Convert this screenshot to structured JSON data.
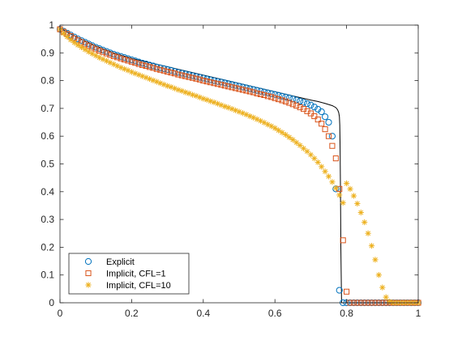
{
  "chart_data": {
    "type": "scatter",
    "title": "",
    "xlabel": "",
    "ylabel": "",
    "xlim": [
      0,
      1
    ],
    "ylim": [
      0,
      1
    ],
    "grid": false,
    "legend_position": "bottom-left",
    "x_ticks": [
      "0",
      "0.2",
      "0.4",
      "0.6",
      "0.8",
      "1"
    ],
    "y_ticks": [
      "0",
      "0.1",
      "0.2",
      "0.3",
      "0.4",
      "0.5",
      "0.6",
      "0.7",
      "0.8",
      "0.9",
      "1"
    ],
    "reference_line": {
      "color": "#000000",
      "x": [
        0.0,
        0.02,
        0.05,
        0.1,
        0.15,
        0.2,
        0.25,
        0.3,
        0.35,
        0.4,
        0.45,
        0.5,
        0.55,
        0.6,
        0.65,
        0.7,
        0.72,
        0.74,
        0.76,
        0.77,
        0.775,
        0.778,
        0.78,
        0.781,
        0.782,
        0.783,
        0.784,
        0.786,
        0.8,
        0.9,
        1.0
      ],
      "y": [
        0.99,
        0.975,
        0.955,
        0.925,
        0.9,
        0.88,
        0.865,
        0.85,
        0.835,
        0.82,
        0.805,
        0.79,
        0.775,
        0.76,
        0.745,
        0.73,
        0.725,
        0.718,
        0.71,
        0.703,
        0.695,
        0.685,
        0.67,
        0.64,
        0.55,
        0.4,
        0.2,
        0.0,
        0.0,
        0.0,
        0.0
      ]
    },
    "series": [
      {
        "name": "Explicit",
        "marker": "circle",
        "color": "#0072BD",
        "x": [
          0.0,
          0.01,
          0.02,
          0.03,
          0.04,
          0.05,
          0.06,
          0.07,
          0.08,
          0.09,
          0.1,
          0.11,
          0.12,
          0.13,
          0.14,
          0.15,
          0.16,
          0.17,
          0.18,
          0.19,
          0.2,
          0.21,
          0.22,
          0.23,
          0.24,
          0.25,
          0.26,
          0.27,
          0.28,
          0.29,
          0.3,
          0.31,
          0.32,
          0.33,
          0.34,
          0.35,
          0.36,
          0.37,
          0.38,
          0.39,
          0.4,
          0.41,
          0.42,
          0.43,
          0.44,
          0.45,
          0.46,
          0.47,
          0.48,
          0.49,
          0.5,
          0.51,
          0.52,
          0.53,
          0.54,
          0.55,
          0.56,
          0.57,
          0.58,
          0.59,
          0.6,
          0.61,
          0.62,
          0.63,
          0.64,
          0.65,
          0.66,
          0.67,
          0.68,
          0.69,
          0.7,
          0.71,
          0.72,
          0.73,
          0.74,
          0.75,
          0.76,
          0.77,
          0.78,
          0.79,
          0.8,
          0.81,
          0.82,
          0.83,
          0.84,
          0.85,
          0.86,
          0.87,
          0.88,
          0.89,
          0.9,
          0.91,
          0.92,
          0.93,
          0.94,
          0.95,
          0.96,
          0.97,
          0.98,
          0.99,
          1.0
        ],
        "y": [
          0.985,
          0.978,
          0.971,
          0.964,
          0.957,
          0.95,
          0.944,
          0.938,
          0.932,
          0.926,
          0.92,
          0.915,
          0.91,
          0.905,
          0.9,
          0.895,
          0.891,
          0.887,
          0.883,
          0.879,
          0.875,
          0.871,
          0.867,
          0.863,
          0.86,
          0.856,
          0.853,
          0.849,
          0.846,
          0.843,
          0.84,
          0.837,
          0.833,
          0.83,
          0.827,
          0.824,
          0.821,
          0.818,
          0.815,
          0.812,
          0.809,
          0.806,
          0.803,
          0.8,
          0.797,
          0.795,
          0.792,
          0.789,
          0.786,
          0.783,
          0.78,
          0.777,
          0.774,
          0.771,
          0.768,
          0.765,
          0.762,
          0.759,
          0.756,
          0.753,
          0.75,
          0.747,
          0.744,
          0.741,
          0.738,
          0.734,
          0.73,
          0.726,
          0.722,
          0.717,
          0.712,
          0.705,
          0.697,
          0.688,
          0.67,
          0.65,
          0.6,
          0.41,
          0.045,
          0.0,
          0.0,
          0.0,
          0.0,
          0.0,
          0.0,
          0.0,
          0.0,
          0.0,
          0.0,
          0.0,
          0.0,
          0.0,
          0.0,
          0.0,
          0.0,
          0.0,
          0.0,
          0.0,
          0.0,
          0.0,
          0.0
        ]
      },
      {
        "name": "Implicit, CFL=1",
        "marker": "square",
        "color": "#D95319",
        "x": [
          0.0,
          0.01,
          0.02,
          0.03,
          0.04,
          0.05,
          0.06,
          0.07,
          0.08,
          0.09,
          0.1,
          0.11,
          0.12,
          0.13,
          0.14,
          0.15,
          0.16,
          0.17,
          0.18,
          0.19,
          0.2,
          0.21,
          0.22,
          0.23,
          0.24,
          0.25,
          0.26,
          0.27,
          0.28,
          0.29,
          0.3,
          0.31,
          0.32,
          0.33,
          0.34,
          0.35,
          0.36,
          0.37,
          0.38,
          0.39,
          0.4,
          0.41,
          0.42,
          0.43,
          0.44,
          0.45,
          0.46,
          0.47,
          0.48,
          0.49,
          0.5,
          0.51,
          0.52,
          0.53,
          0.54,
          0.55,
          0.56,
          0.57,
          0.58,
          0.59,
          0.6,
          0.61,
          0.62,
          0.63,
          0.64,
          0.65,
          0.66,
          0.67,
          0.68,
          0.69,
          0.7,
          0.71,
          0.72,
          0.73,
          0.74,
          0.75,
          0.76,
          0.77,
          0.78,
          0.79,
          0.8,
          0.81,
          0.82,
          0.83,
          0.84,
          0.85,
          0.86,
          0.87,
          0.88,
          0.89,
          0.9,
          0.91,
          0.92,
          0.93,
          0.94,
          0.95,
          0.96,
          0.97,
          0.98,
          0.99,
          1.0
        ],
        "y": [
          0.985,
          0.976,
          0.968,
          0.96,
          0.952,
          0.945,
          0.938,
          0.931,
          0.925,
          0.919,
          0.913,
          0.908,
          0.903,
          0.898,
          0.893,
          0.888,
          0.884,
          0.88,
          0.876,
          0.872,
          0.868,
          0.864,
          0.86,
          0.856,
          0.853,
          0.849,
          0.846,
          0.842,
          0.839,
          0.836,
          0.832,
          0.829,
          0.826,
          0.822,
          0.819,
          0.816,
          0.813,
          0.81,
          0.807,
          0.804,
          0.8,
          0.797,
          0.794,
          0.791,
          0.788,
          0.785,
          0.782,
          0.779,
          0.776,
          0.773,
          0.77,
          0.767,
          0.764,
          0.761,
          0.758,
          0.754,
          0.751,
          0.748,
          0.744,
          0.741,
          0.737,
          0.733,
          0.729,
          0.725,
          0.72,
          0.715,
          0.71,
          0.704,
          0.698,
          0.69,
          0.682,
          0.672,
          0.66,
          0.645,
          0.625,
          0.6,
          0.565,
          0.52,
          0.41,
          0.225,
          0.04,
          0.0,
          0.0,
          0.0,
          0.0,
          0.0,
          0.0,
          0.0,
          0.0,
          0.0,
          0.0,
          0.0,
          0.0,
          0.0,
          0.0,
          0.0,
          0.0,
          0.0,
          0.0,
          0.0,
          0.0
        ]
      },
      {
        "name": "Implicit, CFL=10",
        "marker": "asterisk",
        "color": "#EDB120",
        "x": [
          0.0,
          0.01,
          0.02,
          0.03,
          0.04,
          0.05,
          0.06,
          0.07,
          0.08,
          0.09,
          0.1,
          0.11,
          0.12,
          0.13,
          0.14,
          0.15,
          0.16,
          0.17,
          0.18,
          0.19,
          0.2,
          0.21,
          0.22,
          0.23,
          0.24,
          0.25,
          0.26,
          0.27,
          0.28,
          0.29,
          0.3,
          0.31,
          0.32,
          0.33,
          0.34,
          0.35,
          0.36,
          0.37,
          0.38,
          0.39,
          0.4,
          0.41,
          0.42,
          0.43,
          0.44,
          0.45,
          0.46,
          0.47,
          0.48,
          0.49,
          0.5,
          0.51,
          0.52,
          0.53,
          0.54,
          0.55,
          0.56,
          0.57,
          0.58,
          0.59,
          0.6,
          0.61,
          0.62,
          0.63,
          0.64,
          0.65,
          0.66,
          0.67,
          0.68,
          0.69,
          0.7,
          0.71,
          0.72,
          0.73,
          0.74,
          0.75,
          0.76,
          0.77,
          0.78,
          0.79,
          0.8,
          0.81,
          0.82,
          0.83,
          0.84,
          0.85,
          0.86,
          0.87,
          0.88,
          0.89,
          0.9,
          0.91,
          0.92,
          0.93,
          0.94,
          0.95,
          0.96,
          0.97,
          0.98,
          0.99,
          1.0
        ],
        "y": [
          0.985,
          0.97,
          0.958,
          0.947,
          0.937,
          0.928,
          0.92,
          0.912,
          0.904,
          0.897,
          0.89,
          0.883,
          0.877,
          0.871,
          0.865,
          0.859,
          0.853,
          0.847,
          0.842,
          0.837,
          0.831,
          0.826,
          0.821,
          0.816,
          0.811,
          0.806,
          0.801,
          0.796,
          0.791,
          0.786,
          0.781,
          0.777,
          0.772,
          0.767,
          0.763,
          0.758,
          0.754,
          0.749,
          0.745,
          0.74,
          0.735,
          0.731,
          0.726,
          0.722,
          0.717,
          0.712,
          0.707,
          0.703,
          0.698,
          0.693,
          0.688,
          0.683,
          0.678,
          0.672,
          0.667,
          0.661,
          0.655,
          0.649,
          0.642,
          0.636,
          0.629,
          0.621,
          0.613,
          0.605,
          0.596,
          0.587,
          0.577,
          0.567,
          0.556,
          0.545,
          0.533,
          0.52,
          0.506,
          0.49,
          0.473,
          0.455,
          0.435,
          0.413,
          0.388,
          0.36,
          0.43,
          0.41,
          0.385,
          0.357,
          0.325,
          0.29,
          0.25,
          0.205,
          0.155,
          0.1,
          0.055,
          0.02,
          0.004,
          0.0,
          0.0,
          0.0,
          0.0,
          0.0,
          0.0,
          0.0,
          0.0
        ]
      }
    ]
  }
}
